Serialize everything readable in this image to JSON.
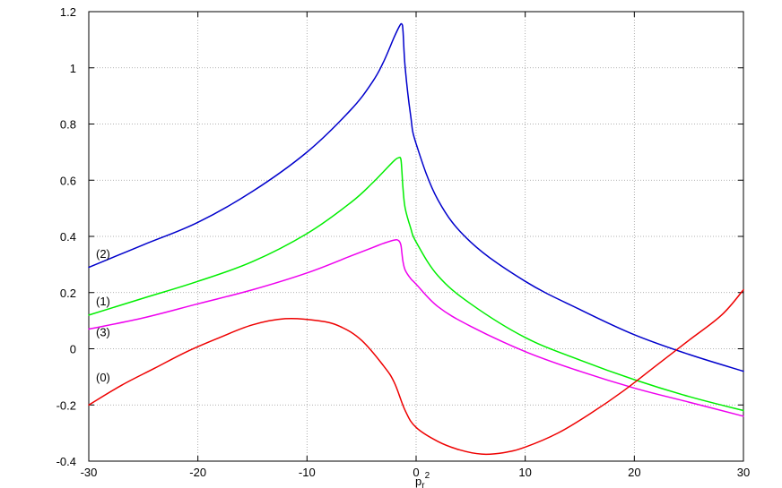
{
  "chart_data": {
    "type": "line",
    "title": "",
    "xlabel": {
      "base": "p",
      "subscript": "r",
      "superscript": "2"
    },
    "ylabel": "",
    "xlim": [
      -30,
      30
    ],
    "ylim": [
      -0.4,
      1.2
    ],
    "grid": true,
    "grid_style": "dotted",
    "x_ticks": [
      "-30",
      "-20",
      "-10",
      "0",
      "10",
      "20",
      "30"
    ],
    "y_ticks": [
      "-0.4",
      "-0.2",
      "0",
      "0.2",
      "0.4",
      "0.6",
      "0.8",
      "1",
      "1.2"
    ],
    "series": [
      {
        "name": "(2)",
        "color": "#0000cc",
        "x": [
          -30,
          -25,
          -20,
          -15,
          -10,
          -6,
          -4,
          -3,
          -2,
          -1.5,
          -1.3,
          -1.2,
          -1.0,
          -0.5,
          0,
          2,
          5,
          10,
          15,
          20,
          25,
          30
        ],
        "y": [
          0.29,
          0.37,
          0.45,
          0.56,
          0.7,
          0.85,
          0.95,
          1.02,
          1.11,
          1.15,
          1.155,
          1.13,
          1.0,
          0.83,
          0.73,
          0.53,
          0.38,
          0.24,
          0.14,
          0.05,
          -0.02,
          -0.08
        ]
      },
      {
        "name": "(1)",
        "color": "#00ee00",
        "x": [
          -30,
          -25,
          -20,
          -15,
          -10,
          -6,
          -4,
          -3,
          -2,
          -1.6,
          -1.4,
          -1.3,
          -1.2,
          -1.0,
          -0.5,
          0,
          2,
          5,
          10,
          15,
          20,
          25,
          30
        ],
        "y": [
          0.12,
          0.18,
          0.24,
          0.31,
          0.41,
          0.52,
          0.59,
          0.63,
          0.67,
          0.68,
          0.675,
          0.63,
          0.57,
          0.5,
          0.43,
          0.38,
          0.26,
          0.16,
          0.04,
          -0.04,
          -0.11,
          -0.17,
          -0.22
        ]
      },
      {
        "name": "(3)",
        "color": "#ee00ee",
        "x": [
          -30,
          -25,
          -20,
          -15,
          -10,
          -6,
          -4,
          -3,
          -2,
          -1.6,
          -1.4,
          -1.3,
          -1.2,
          -1.0,
          -0.5,
          0,
          2,
          5,
          10,
          15,
          20,
          25,
          30
        ],
        "y": [
          0.07,
          0.11,
          0.16,
          0.21,
          0.27,
          0.33,
          0.36,
          0.375,
          0.387,
          0.385,
          0.37,
          0.34,
          0.31,
          0.28,
          0.25,
          0.23,
          0.15,
          0.08,
          -0.01,
          -0.08,
          -0.14,
          -0.19,
          -0.24
        ]
      },
      {
        "name": "(0)",
        "color": "#ee0000",
        "x": [
          -30,
          -27,
          -24,
          -21,
          -18,
          -15,
          -12,
          -9,
          -7,
          -5,
          -3,
          -2,
          -1,
          0,
          2,
          4,
          6,
          8,
          10,
          13,
          16,
          19,
          22,
          25,
          28,
          30
        ],
        "y": [
          -0.2,
          -0.13,
          -0.07,
          -0.01,
          0.04,
          0.085,
          0.107,
          0.1,
          0.08,
          0.03,
          -0.06,
          -0.12,
          -0.22,
          -0.28,
          -0.33,
          -0.36,
          -0.375,
          -0.37,
          -0.35,
          -0.3,
          -0.23,
          -0.15,
          -0.06,
          0.03,
          0.12,
          0.21
        ]
      }
    ],
    "series_labels": [
      {
        "text": "(2)",
        "x": -30,
        "y": 0.34
      },
      {
        "text": "(1)",
        "x": -30,
        "y": 0.17
      },
      {
        "text": "(3)",
        "x": -30,
        "y": 0.06
      },
      {
        "text": "(0)",
        "x": -30,
        "y": -0.1
      }
    ]
  }
}
